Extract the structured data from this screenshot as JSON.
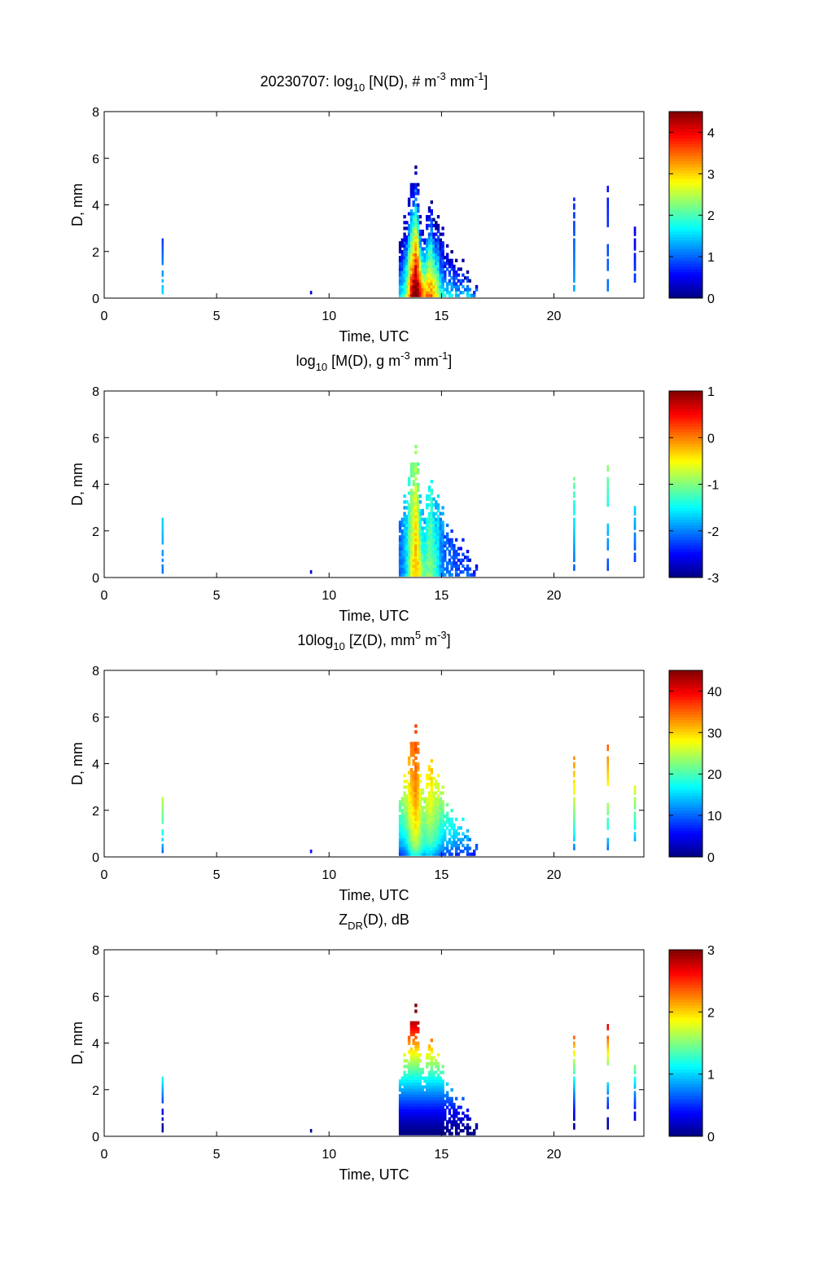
{
  "chart_data": [
    {
      "type": "heatmap",
      "title_prefix": "20230707: log",
      "title_sub": "10",
      "title_main": " [N(D), # m",
      "title_sup1": "-3",
      "title_mid": " mm",
      "title_sup2": "-1",
      "title_end": "]",
      "xlabel": "Time, UTC",
      "ylabel": "D, mm",
      "xlim": [
        0,
        24
      ],
      "ylim": [
        0,
        8
      ],
      "xticks": [
        0,
        5,
        10,
        15,
        20
      ],
      "yticks": [
        0,
        2,
        4,
        6,
        8
      ],
      "colorbar": {
        "min": 0,
        "max": 4.5,
        "ticks": [
          0,
          1,
          2,
          3,
          4
        ]
      },
      "field": "N"
    },
    {
      "type": "heatmap",
      "title_prefix": "log",
      "title_sub": "10",
      "title_main": " [M(D), g m",
      "title_sup1": "-3",
      "title_mid": " mm",
      "title_sup2": "-1",
      "title_end": "]",
      "xlabel": "Time, UTC",
      "ylabel": "D, mm",
      "xlim": [
        0,
        24
      ],
      "ylim": [
        0,
        8
      ],
      "xticks": [
        0,
        5,
        10,
        15,
        20
      ],
      "yticks": [
        0,
        2,
        4,
        6,
        8
      ],
      "colorbar": {
        "min": -3,
        "max": 1,
        "ticks": [
          -3,
          -2,
          -1,
          0,
          1
        ]
      },
      "field": "M"
    },
    {
      "type": "heatmap",
      "title_prefix": "10log",
      "title_sub": "10",
      "title_main": " [Z(D),  mm",
      "title_sup1": "5",
      "title_mid": " m",
      "title_sup2": "-3",
      "title_end": "]",
      "xlabel": "Time, UTC",
      "ylabel": "D, mm",
      "xlim": [
        0,
        24
      ],
      "ylim": [
        0,
        8
      ],
      "xticks": [
        0,
        5,
        10,
        15,
        20
      ],
      "yticks": [
        0,
        2,
        4,
        6,
        8
      ],
      "colorbar": {
        "min": 0,
        "max": 45,
        "ticks": [
          0,
          10,
          20,
          30,
          40
        ]
      },
      "field": "Z"
    },
    {
      "type": "heatmap",
      "title_prefix": "Z",
      "title_sub": "DR",
      "title_main": "(D), dB",
      "title_sup1": "",
      "title_mid": "",
      "title_sup2": "",
      "title_end": "",
      "xlabel": "Time, UTC",
      "ylabel": "D, mm",
      "xlim": [
        0,
        24
      ],
      "ylim": [
        0,
        8
      ],
      "xticks": [
        0,
        5,
        10,
        15,
        20
      ],
      "yticks": [
        0,
        2,
        4,
        6,
        8
      ],
      "colorbar": {
        "min": 0,
        "max": 3,
        "ticks": [
          0,
          1,
          2,
          3
        ]
      },
      "field": "ZDR"
    }
  ],
  "precip_events": [
    {
      "t": 2.6,
      "dmax": 2.5,
      "dmin": 0.1,
      "strength": 0.35
    },
    {
      "t": 9.2,
      "dmax": 0.35,
      "dmin": 0.1,
      "strength": 0.1
    },
    {
      "t": 20.9,
      "dmax": 4.3,
      "dmin": 0.1,
      "strength": 0.3
    },
    {
      "t": 22.4,
      "dmax": 4.9,
      "dmin": 0.3,
      "strength": 0.25
    },
    {
      "t": 23.6,
      "dmax": 3.0,
      "dmin": 0.5,
      "strength": 0.2
    }
  ],
  "storm_core": {
    "t_start": 13.1,
    "t_peak": 13.8,
    "t_second": 14.5,
    "t_end": 16.5,
    "dmax_peak": 5.7,
    "dmax_second": 4.0
  }
}
